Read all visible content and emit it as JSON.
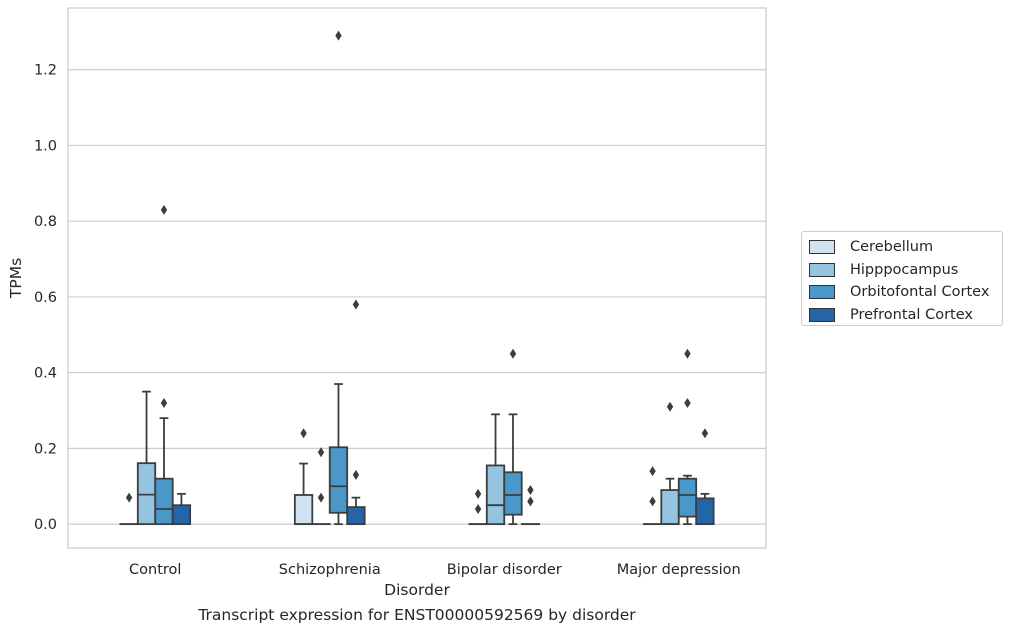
{
  "chart_data": {
    "type": "box",
    "title": "",
    "xlabel": "Disorder",
    "ylabel": "TPMs",
    "caption": "Transcript expression for ENST00000592569 by disorder",
    "categories": [
      "Control",
      "Schizophrenia",
      "Bipolar disorder",
      "Major depression"
    ],
    "yticks": [
      0.0,
      0.2,
      0.4,
      0.6,
      0.8,
      1.0,
      1.2
    ],
    "ytick_labels": [
      "0.0",
      "0.2",
      "0.4",
      "0.6",
      "0.8",
      "1.0",
      "1.2"
    ],
    "ylim": [
      -0.063,
      1.363
    ],
    "grid": "horizontal",
    "legend_position": "right",
    "series": [
      {
        "name": "Cerebellum",
        "color": "#d0e1f2",
        "boxes": [
          {
            "q1": 0,
            "median": 0,
            "q3": 0,
            "whislo": 0,
            "whishi": 0,
            "fliers": [
              0.07
            ]
          },
          {
            "q1": 0,
            "median": 0,
            "q3": 0.077,
            "whislo": 0,
            "whishi": 0.16,
            "fliers": [
              0.24
            ]
          },
          {
            "q1": 0,
            "median": 0,
            "q3": 0,
            "whislo": 0,
            "whishi": 0,
            "fliers": [
              0.04,
              0.08
            ]
          },
          {
            "q1": 0,
            "median": 0,
            "q3": 0,
            "whislo": 0,
            "whishi": 0,
            "fliers": [
              0.06,
              0.14
            ]
          }
        ]
      },
      {
        "name": "Hipppocampus",
        "color": "#94c4df",
        "boxes": [
          {
            "q1": 0,
            "median": 0.078,
            "q3": 0.161,
            "whislo": 0,
            "whishi": 0.35,
            "fliers": []
          },
          {
            "q1": 0,
            "median": 0,
            "q3": 0,
            "whislo": 0,
            "whishi": 0,
            "fliers": [
              0.07,
              0.19
            ]
          },
          {
            "q1": 0,
            "median": 0.05,
            "q3": 0.155,
            "whislo": 0,
            "whishi": 0.29,
            "fliers": []
          },
          {
            "q1": 0,
            "median": 0,
            "q3": 0.09,
            "whislo": 0,
            "whishi": 0.12,
            "fliers": [
              0.31
            ]
          }
        ]
      },
      {
        "name": "Orbitofontal Cortex",
        "color": "#4a98c9",
        "boxes": [
          {
            "q1": 0,
            "median": 0.04,
            "q3": 0.12,
            "whislo": 0,
            "whishi": 0.28,
            "fliers": [
              0.32,
              0.83
            ]
          },
          {
            "q1": 0.03,
            "median": 0.1,
            "q3": 0.203,
            "whislo": 0,
            "whishi": 0.37,
            "fliers": [
              1.29
            ]
          },
          {
            "q1": 0.025,
            "median": 0.077,
            "q3": 0.137,
            "whislo": 0,
            "whishi": 0.29,
            "fliers": [
              0.45
            ]
          },
          {
            "q1": 0.02,
            "median": 0.077,
            "q3": 0.12,
            "whislo": 0,
            "whishi": 0.128,
            "fliers": [
              0.32,
              0.45
            ]
          }
        ]
      },
      {
        "name": "Prefrontal Cortex",
        "color": "#2664a8",
        "boxes": [
          {
            "q1": 0,
            "median": 0,
            "q3": 0.05,
            "whislo": 0,
            "whishi": 0.08,
            "fliers": []
          },
          {
            "q1": 0,
            "median": 0,
            "q3": 0.045,
            "whislo": 0,
            "whishi": 0.07,
            "fliers": [
              0.13,
              0.58
            ]
          },
          {
            "q1": 0,
            "median": 0,
            "q3": 0,
            "whislo": 0,
            "whishi": 0,
            "fliers": [
              0.06,
              0.09
            ]
          },
          {
            "q1": 0,
            "median": 0,
            "q3": 0.068,
            "whislo": 0,
            "whishi": 0.08,
            "fliers": [
              0.24
            ]
          }
        ]
      }
    ]
  }
}
